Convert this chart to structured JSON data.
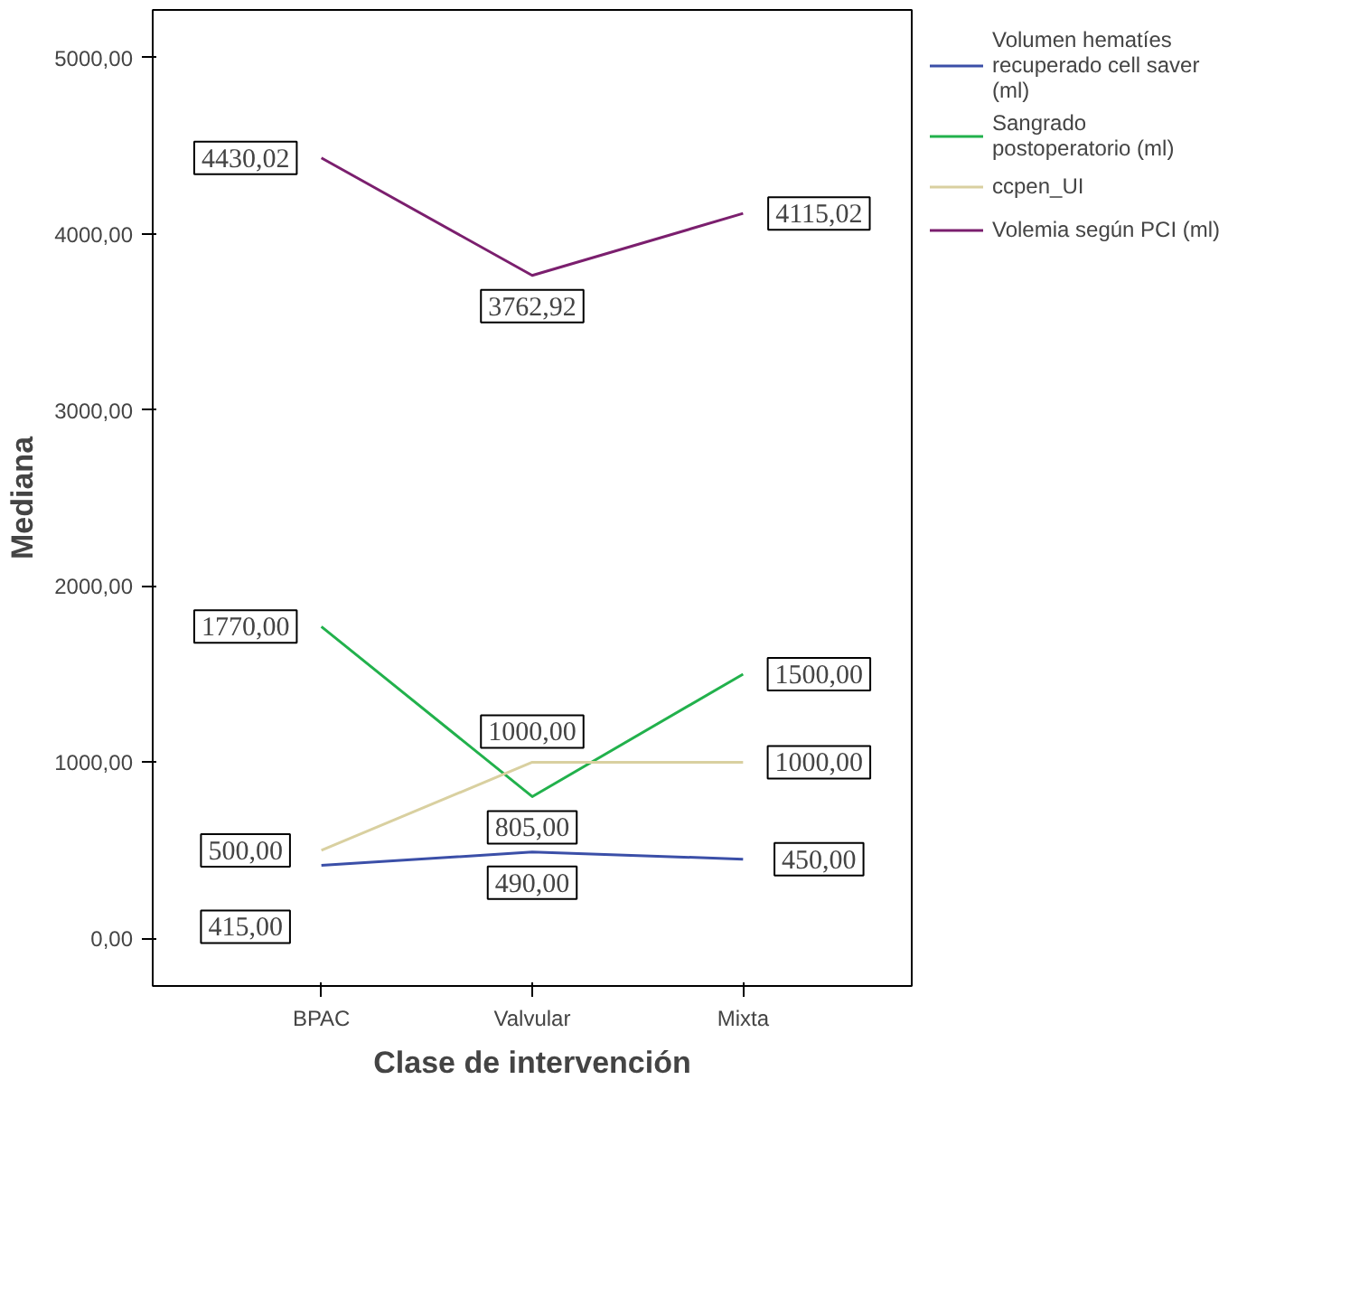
{
  "chart_data": {
    "type": "line",
    "xlabel": "Clase de intervención",
    "ylabel": "Mediana",
    "categories": [
      "BPAC",
      "Valvular",
      "Mixta"
    ],
    "series": [
      {
        "name": "Volumen hematíes recuperado cell saver (ml)",
        "color": "#3b4fa8",
        "values": [
          415.0,
          490.0,
          450.0
        ],
        "value_labels": [
          "415,00",
          "490,00",
          "450,00"
        ]
      },
      {
        "name": "Sangrado postoperatorio (ml)",
        "color": "#22b14c",
        "values": [
          1770.0,
          805.0,
          1500.0
        ],
        "value_labels": [
          "1770,00",
          "805,00",
          "1500,00"
        ]
      },
      {
        "name": "ccpen_UI",
        "color": "#d9d0a0",
        "values": [
          500.0,
          1000.0,
          1000.0
        ],
        "value_labels": [
          "500,00",
          "1000,00",
          "1000,00"
        ]
      },
      {
        "name": "Volemia según PCI (ml)",
        "color": "#7b1f6e",
        "values": [
          4430.02,
          3762.92,
          4115.02
        ],
        "value_labels": [
          "4430,02",
          "3762,92",
          "4115,02"
        ]
      }
    ],
    "ylim": [
      -270,
      5270
    ],
    "yticks": [
      {
        "value": 0,
        "label": "0,00"
      },
      {
        "value": 1000,
        "label": "1000,00"
      },
      {
        "value": 2000,
        "label": "2000,00"
      },
      {
        "value": 3000,
        "label": "3000,00"
      },
      {
        "value": 4000,
        "label": "4000,00"
      },
      {
        "value": 5000,
        "label": "5000,00"
      }
    ],
    "grid": false,
    "legend": "top right",
    "line_style": "solid"
  }
}
